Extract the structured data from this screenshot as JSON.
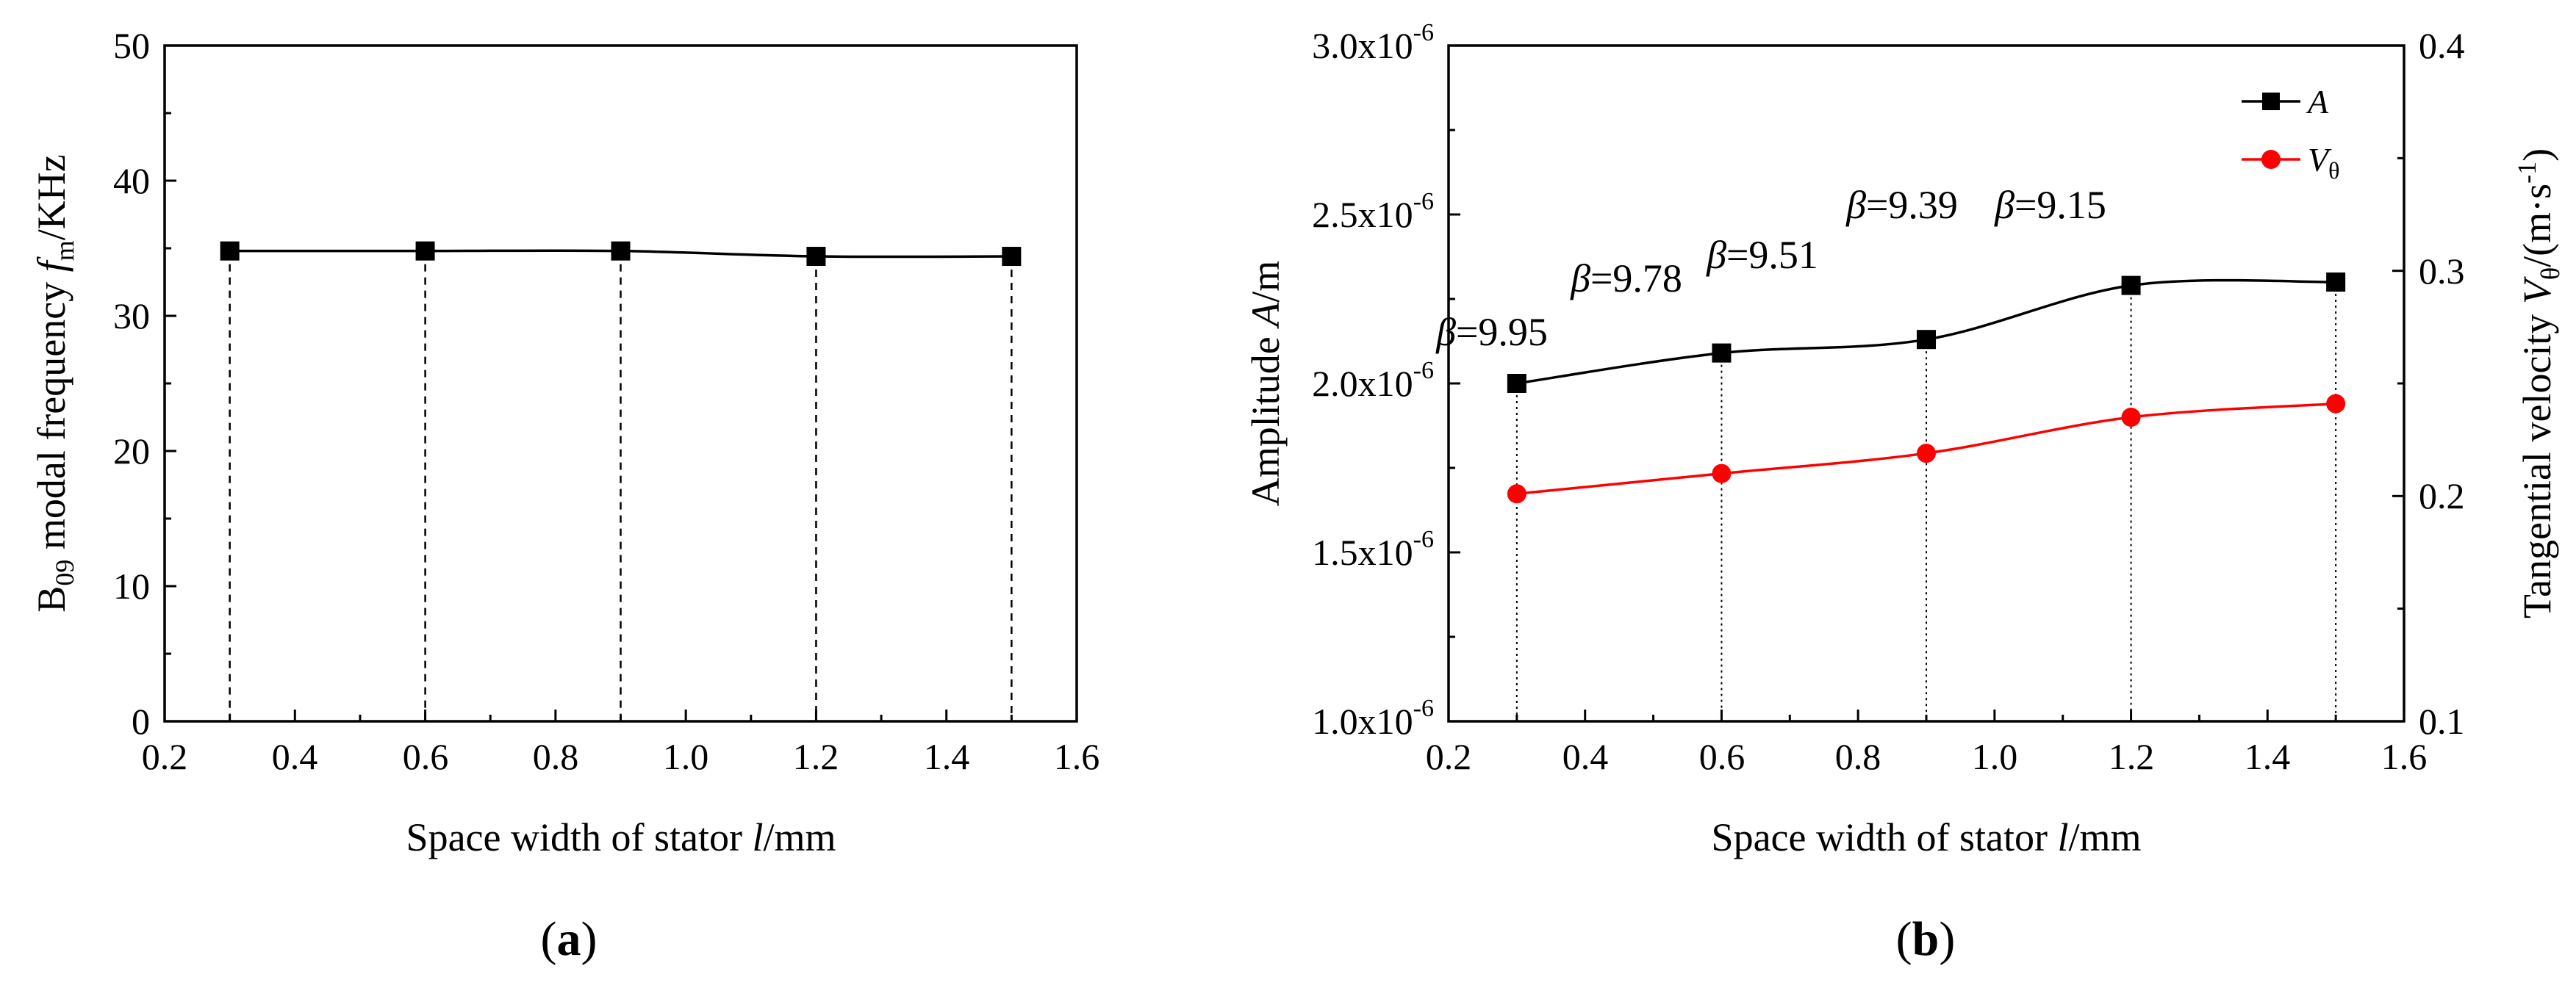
{
  "chart_data": [
    {
      "type": "line",
      "panel_label": {
        "open": "(",
        "letter": "a",
        "close": ")"
      },
      "x": [
        0.3,
        0.6,
        0.9,
        1.2,
        1.5
      ],
      "series": [
        {
          "name": "B09 modal frequency",
          "values": [
            34.8,
            34.8,
            34.8,
            34.4,
            34.4
          ],
          "color": "#000000"
        }
      ],
      "xlim": [
        0.2,
        1.6
      ],
      "ylim": [
        0,
        50
      ],
      "xticks": [
        "0.2",
        "0.4",
        "0.6",
        "0.8",
        "1.0",
        "1.2",
        "1.4",
        "1.6"
      ],
      "yticks": [
        "0",
        "10",
        "20",
        "30",
        "40",
        "50"
      ],
      "xlabel": {
        "pre": "Space width of stator ",
        "var": "l",
        "post": "/mm"
      },
      "ylabel": {
        "b": "B",
        "sub1": "09",
        "mid": " modal frequency ",
        "var": "f",
        "sub2": "m",
        "post": "/KHz"
      },
      "drop_lines": "dashed"
    },
    {
      "type": "line",
      "panel_label": {
        "open": "(",
        "letter": "b",
        "close": ")"
      },
      "x": [
        0.3,
        0.6,
        0.9,
        1.2,
        1.5
      ],
      "series": [
        {
          "name": "A",
          "axis": "left",
          "values": [
            2e-06,
            2.09e-06,
            2.13e-06,
            2.29e-06,
            2.3e-06
          ],
          "color": "#000000",
          "marker": "square"
        },
        {
          "name": "Vθ",
          "axis": "right",
          "values": [
            0.201,
            0.21,
            0.219,
            0.235,
            0.241
          ],
          "color": "#ff0000",
          "marker": "circle"
        }
      ],
      "xlim": [
        0.2,
        1.6
      ],
      "ylim_left": [
        1e-06,
        3e-06
      ],
      "ylim_right": [
        0.1,
        0.4
      ],
      "xticks": [
        "0.2",
        "0.4",
        "0.6",
        "0.8",
        "1.0",
        "1.2",
        "1.4",
        "1.6"
      ],
      "yticks_left": [
        {
          "mant": "1.0x10",
          "exp": "-6"
        },
        {
          "mant": "1.5x10",
          "exp": "-6"
        },
        {
          "mant": "2.0x10",
          "exp": "-6"
        },
        {
          "mant": "2.5x10",
          "exp": "-6"
        },
        {
          "mant": "3.0x10",
          "exp": "-6"
        }
      ],
      "yticks_right": [
        "0.1",
        "0.2",
        "0.3",
        "0.4"
      ],
      "xlabel": {
        "pre": "Space width of stator ",
        "var": "l",
        "post": "/mm"
      },
      "ylabel_left": {
        "pre": "Amplitude ",
        "var": "A",
        "post": "/m"
      },
      "ylabel_right": {
        "pre": "Tangential velocity ",
        "var": "V",
        "sub": "θ",
        "mid": "/(m·s",
        "sup": "-1",
        "post": ")"
      },
      "annotations": [
        {
          "sym": "β",
          "text": "=9.95"
        },
        {
          "sym": "β",
          "text": "=9.78"
        },
        {
          "sym": "β",
          "text": "=9.51"
        },
        {
          "sym": "β",
          "text": "=9.39"
        },
        {
          "sym": "β",
          "text": "=9.15"
        }
      ],
      "legend": {
        "position": "top-right",
        "entries": [
          {
            "var": "A",
            "sub": ""
          },
          {
            "var": "V",
            "sub": "θ"
          }
        ]
      },
      "drop_lines": "dotted"
    }
  ]
}
